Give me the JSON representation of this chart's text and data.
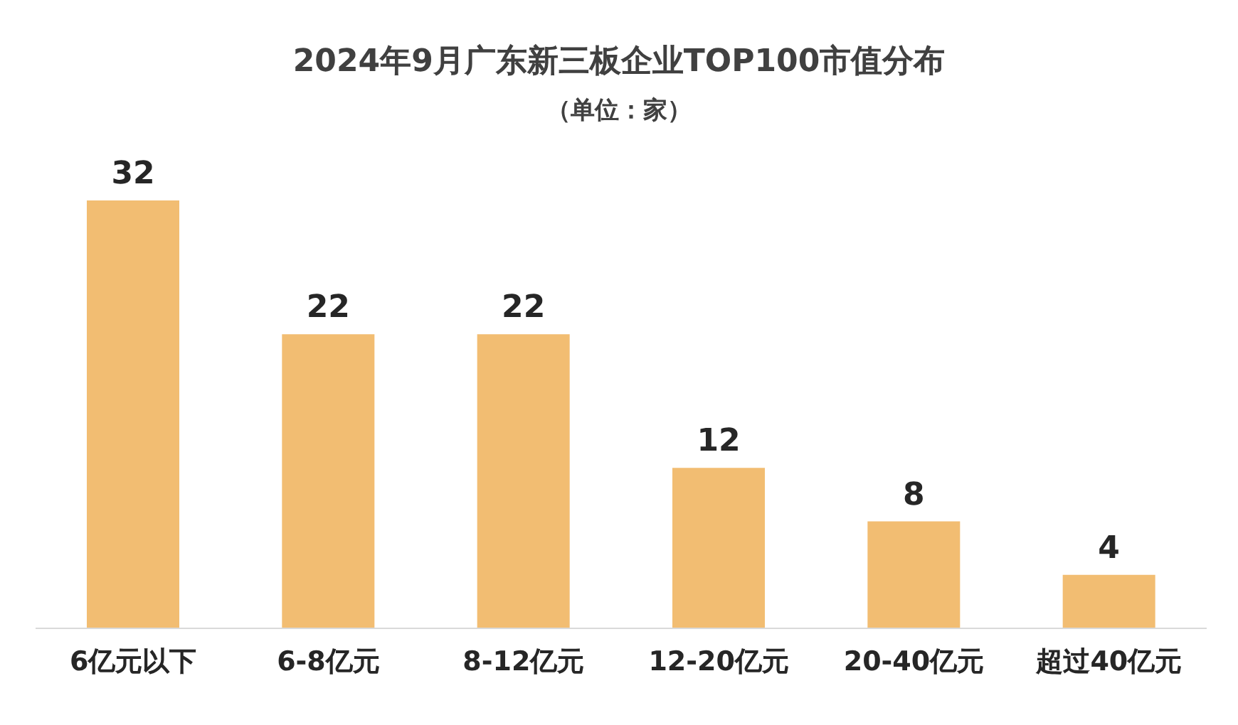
{
  "chart_data": {
    "type": "bar",
    "title": "2024年9月广东新三板企业TOP100市值分布",
    "subtitle": "（单位：家）",
    "categories": [
      "6亿元以下",
      "6-8亿元",
      "8-12亿元",
      "12-20亿元",
      "20-40亿元",
      "超过40亿元"
    ],
    "values": [
      32,
      22,
      22,
      12,
      8,
      4
    ],
    "color": "#f2bd72",
    "data_labels": true
  }
}
